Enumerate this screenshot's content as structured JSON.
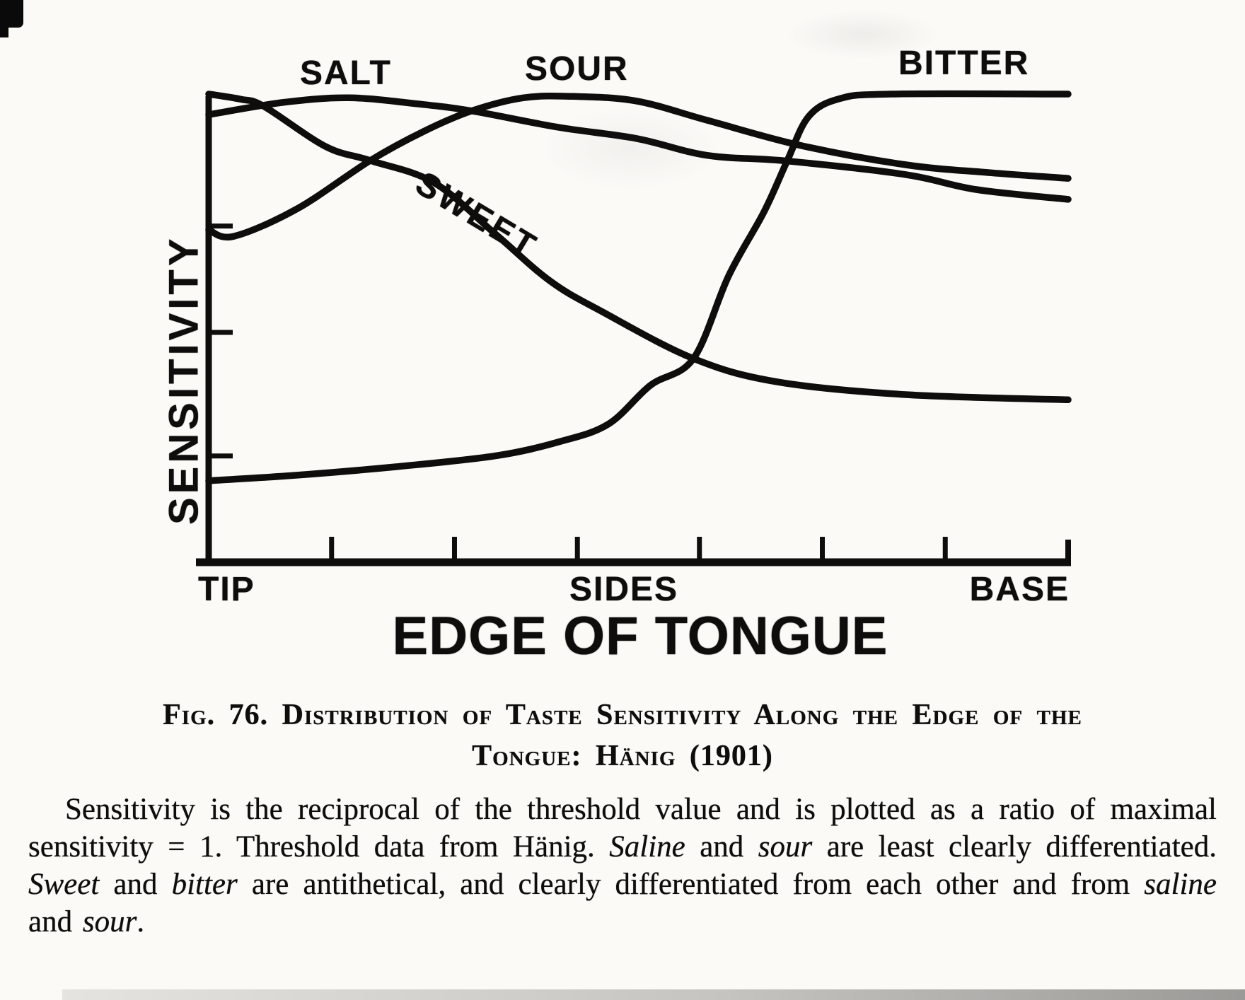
{
  "figure": {
    "caption_line1": "Fig. 76. Distribution of Taste Sensitivity Along the Edge of the",
    "caption_line2": "Tongue: Hänig (1901)"
  },
  "description": {
    "segments": [
      {
        "text": "Sensitivity is the reciprocal of the threshold value and is plotted as a ratio of maximal sensitivity = 1. Threshold data from Hänig. ",
        "italic": false
      },
      {
        "text": "Saline",
        "italic": true
      },
      {
        "text": " and ",
        "italic": false
      },
      {
        "text": "sour",
        "italic": true
      },
      {
        "text": " are least clearly differentiated. ",
        "italic": false
      },
      {
        "text": "Sweet",
        "italic": true
      },
      {
        "text": " and ",
        "italic": false
      },
      {
        "text": "bitter",
        "italic": true
      },
      {
        "text": " are antithetical, and clearly differentiated from each other and from ",
        "italic": false
      },
      {
        "text": "saline",
        "italic": true
      },
      {
        "text": " and ",
        "italic": false
      },
      {
        "text": "sour",
        "italic": true
      },
      {
        "text": ".",
        "italic": false
      }
    ]
  },
  "chart_data": {
    "type": "line",
    "title": "Distribution of taste sensitivity along the edge of the tongue (Hänig 1901)",
    "xlabel": "EDGE OF TONGUE",
    "ylabel": "SENSITIVITY",
    "x_tick_region_labels": [
      "TIP",
      "SIDES",
      "BASE"
    ],
    "x_axis_minor_tick_positions": [
      0.143,
      0.286,
      0.429,
      0.571,
      0.714,
      0.857
    ],
    "y_axis_minor_tick_positions": [
      0.227,
      0.491,
      0.718
    ],
    "xlim_note": "x runs from tongue tip (0) to tongue base (1)",
    "ylim": [
      0,
      1
    ],
    "y_note": "sensitivity plotted as ratio of maximal sensitivity = 1",
    "grid": false,
    "legend_position": "labels adjacent to curves",
    "series": [
      {
        "name": "SALT",
        "points": [
          [
            0,
            0.956
          ],
          [
            0.086,
            0.982
          ],
          [
            0.163,
            0.992
          ],
          [
            0.243,
            0.979
          ],
          [
            0.306,
            0.964
          ],
          [
            0.407,
            0.929
          ],
          [
            0.498,
            0.905
          ],
          [
            0.58,
            0.869
          ],
          [
            0.673,
            0.857
          ],
          [
            0.811,
            0.828
          ],
          [
            0.893,
            0.796
          ],
          [
            1,
            0.775
          ]
        ]
      },
      {
        "name": "SOUR",
        "points": [
          [
            0,
            0.71
          ],
          [
            0.029,
            0.696
          ],
          [
            0.103,
            0.755
          ],
          [
            0.188,
            0.858
          ],
          [
            0.251,
            0.921
          ],
          [
            0.306,
            0.964
          ],
          [
            0.366,
            0.992
          ],
          [
            0.424,
            0.995
          ],
          [
            0.498,
            0.985
          ],
          [
            0.58,
            0.944
          ],
          [
            0.687,
            0.891
          ],
          [
            0.811,
            0.849
          ],
          [
            0.909,
            0.832
          ],
          [
            1,
            0.82
          ]
        ]
      },
      {
        "name": "SWEET",
        "points": [
          [
            0,
            1.0
          ],
          [
            0.037,
            0.989
          ],
          [
            0.064,
            0.974
          ],
          [
            0.136,
            0.888
          ],
          [
            0.188,
            0.858
          ],
          [
            0.262,
            0.811
          ],
          [
            0.333,
            0.702
          ],
          [
            0.397,
            0.601
          ],
          [
            0.457,
            0.536
          ],
          [
            0.564,
            0.435
          ],
          [
            0.662,
            0.385
          ],
          [
            0.811,
            0.358
          ],
          [
            1,
            0.347
          ]
        ]
      },
      {
        "name": "BITTER",
        "points": [
          [
            0,
            0.174
          ],
          [
            0.103,
            0.186
          ],
          [
            0.218,
            0.204
          ],
          [
            0.333,
            0.227
          ],
          [
            0.407,
            0.257
          ],
          [
            0.465,
            0.295
          ],
          [
            0.514,
            0.378
          ],
          [
            0.564,
            0.435
          ],
          [
            0.605,
            0.612
          ],
          [
            0.646,
            0.748
          ],
          [
            0.673,
            0.857
          ],
          [
            0.698,
            0.952
          ],
          [
            0.734,
            0.99
          ],
          [
            0.794,
            1.0
          ],
          [
            1,
            1.0
          ]
        ]
      }
    ]
  }
}
